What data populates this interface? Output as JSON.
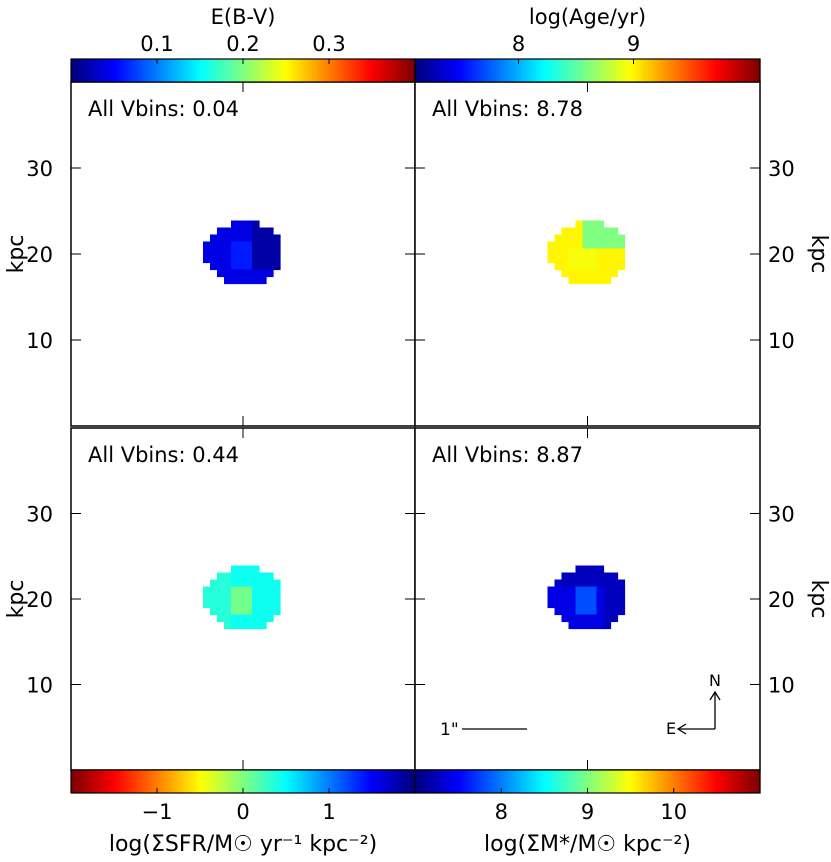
{
  "chart_data": [
    {
      "type": "heatmap",
      "panel": "top-left",
      "annotation": "All Vbins: 0.04",
      "colorbar": {
        "label": "E(B-V)",
        "position": "top",
        "ticks": [
          0.1,
          0.2,
          0.3
        ],
        "tick_labels": [
          "0.1",
          "0.2",
          "0.3"
        ],
        "range": [
          0.0,
          0.4
        ],
        "colormap": "jet"
      },
      "ylabel": "kpc",
      "yticks": [
        "10",
        "20",
        "30"
      ],
      "xlim": [
        0,
        40
      ],
      "ylim": [
        0,
        40
      ],
      "grid": false
    },
    {
      "type": "heatmap",
      "panel": "top-right",
      "annotation": "All Vbins: 8.78",
      "colorbar": {
        "label": "log(Age/yr)",
        "position": "top",
        "ticks": [
          8,
          9
        ],
        "tick_labels": [
          "8",
          "9"
        ],
        "range": [
          7.1,
          10.1
        ],
        "colormap": "jet"
      },
      "ylabel": "kpc",
      "yticks": [
        "10",
        "20",
        "30"
      ],
      "xlim": [
        0,
        40
      ],
      "ylim": [
        0,
        40
      ],
      "grid": false
    },
    {
      "type": "heatmap",
      "panel": "bottom-left",
      "annotation": "All Vbins: 0.44",
      "colorbar": {
        "label": "log(ΣSFR/M☉ yr⁻¹ kpc⁻²)",
        "position": "bottom",
        "ticks": [
          -1,
          0,
          1
        ],
        "tick_labels": [
          "−1",
          "0",
          "1"
        ],
        "range": [
          -2.0,
          2.0
        ],
        "colormap": "jet_r"
      },
      "ylabel": "kpc",
      "yticks": [
        "10",
        "20",
        "30"
      ],
      "xlim": [
        0,
        40
      ],
      "ylim": [
        0,
        40
      ],
      "grid": false
    },
    {
      "type": "heatmap",
      "panel": "bottom-right",
      "annotation": "All Vbins: 8.87",
      "colorbar": {
        "label": "log(ΣM*/M☉ kpc⁻²)",
        "position": "bottom",
        "ticks": [
          8,
          9,
          10
        ],
        "tick_labels": [
          "8",
          "9",
          "10"
        ],
        "range": [
          7.0,
          11.0
        ],
        "colormap": "jet"
      },
      "ylabel": "kpc",
      "yticks": [
        "10",
        "20",
        "30"
      ],
      "xlim": [
        0,
        40
      ],
      "ylim": [
        0,
        40
      ],
      "grid": false,
      "scalebar_label": "1\"",
      "compass": {
        "north": "N",
        "east": "E"
      }
    }
  ]
}
